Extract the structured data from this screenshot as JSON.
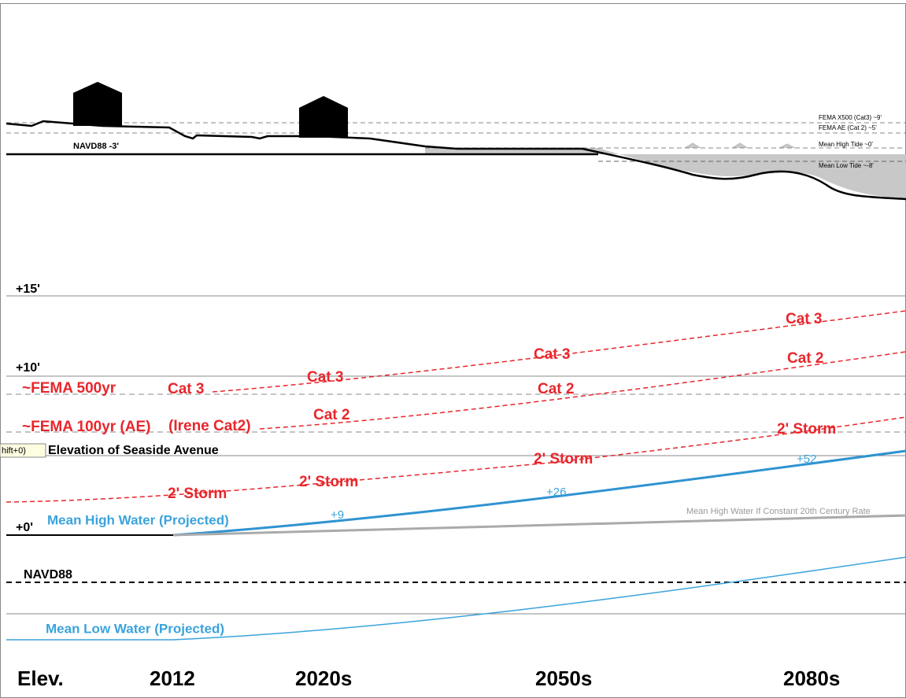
{
  "profile": {
    "datum_label": "NAVD88 -3'",
    "legend": [
      "FEMA X500 (Cat3) ~9'",
      "FEMA AE (Cat 2) ~5'",
      "Mean High Tide ~0'",
      "Mean Low Tide ~-8'"
    ]
  },
  "elevation_labels": [
    "+15'",
    "+10'",
    "+0'"
  ],
  "reference_labels": {
    "fema_500": "~FEMA 500yr",
    "fema_100": "~FEMA 100yr (AE)",
    "irene": "(Irene Cat2)",
    "tooltip": "hift+0)",
    "seaside": "Elevation of Seaside Avenue",
    "navd88": "NAVD88"
  },
  "storm_labels": [
    "Cat 3",
    "Cat 3",
    "Cat 2",
    "2' Storm",
    "2' Storm",
    "Cat 3",
    "Cat 2",
    "2' Storm",
    "Cat 3",
    "Cat 2",
    "2' Storm"
  ],
  "water_labels": {
    "mhw": "Mean High Water (Projected)",
    "mlw": "Mean Low Water (Projected)",
    "constant": "Mean High Water If Constant 20th Century Rate",
    "rise": [
      "+9",
      "+26",
      "+52"
    ]
  },
  "x_labels": [
    "Elev.",
    "2012",
    "2020s",
    "2050s",
    "2080s"
  ]
}
